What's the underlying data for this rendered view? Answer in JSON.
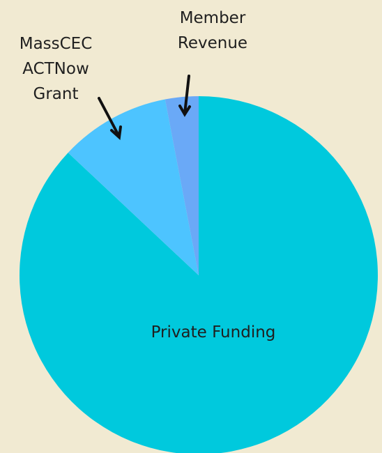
{
  "chart_data": {
    "type": "pie",
    "categories": [
      "Private Funding",
      "MassCEC ACTNow Grant",
      "Member Revenue"
    ],
    "values": [
      87,
      10,
      3
    ],
    "colors": [
      "#00c9dd",
      "#4dc4ff",
      "#6aa9f7"
    ]
  }
}
